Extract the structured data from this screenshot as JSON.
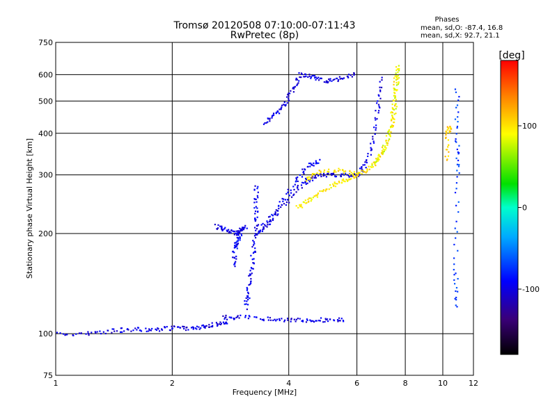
{
  "chart_data": {
    "type": "scatter",
    "title": "Tromsø 20120508 07:10:00-07:11:43",
    "subtitle": "RwPretec (8p)",
    "xlabel": "Frequency [MHz]",
    "ylabel": "Stationary phase Virtual Height [km]",
    "x_scale": "log",
    "y_scale": "log",
    "xlim": [
      1,
      12
    ],
    "ylim": [
      75,
      750
    ],
    "x_ticks": [
      1,
      2,
      4,
      6,
      8,
      10,
      12
    ],
    "y_ticks": [
      75,
      100,
      200,
      300,
      400,
      500,
      600,
      750
    ],
    "grid": true,
    "phases_box": {
      "title": "Phases",
      "line1": "mean, sd,O: -87.4, 16.8",
      "line2": "mean, sd,X:  92.7, 21.1"
    },
    "colorbar": {
      "label": "[deg]",
      "ticks": [
        "100",
        "0",
        "-100"
      ],
      "tick_values": [
        100,
        0,
        -100
      ],
      "range": [
        -180,
        180
      ]
    },
    "traces": [
      {
        "phase": -100,
        "points": [
          [
            1.0,
            100
          ],
          [
            1.2,
            100
          ],
          [
            1.4,
            102
          ],
          [
            1.6,
            103
          ],
          [
            1.8,
            103
          ],
          [
            2.0,
            104
          ],
          [
            2.2,
            104
          ],
          [
            2.4,
            105
          ],
          [
            2.6,
            107
          ],
          [
            2.8,
            109
          ]
        ]
      },
      {
        "phase": -100,
        "points": [
          [
            2.7,
            112
          ],
          [
            3.0,
            112
          ],
          [
            3.5,
            111
          ],
          [
            4.0,
            110
          ],
          [
            4.5,
            110
          ],
          [
            5.0,
            110
          ],
          [
            5.6,
            110
          ]
        ]
      },
      {
        "phase": -95,
        "points": [
          [
            3.1,
            120
          ],
          [
            3.15,
            135
          ],
          [
            3.2,
            155
          ],
          [
            3.25,
            180
          ],
          [
            3.3,
            210
          ],
          [
            3.3,
            240
          ],
          [
            3.3,
            280
          ]
        ]
      },
      {
        "phase": -90,
        "points": [
          [
            2.9,
            160
          ],
          [
            2.9,
            180
          ],
          [
            2.95,
            190
          ],
          [
            3.0,
            200
          ]
        ]
      },
      {
        "phase": -100,
        "points": [
          [
            2.6,
            210
          ],
          [
            2.75,
            205
          ],
          [
            2.9,
            200
          ],
          [
            3.0,
            205
          ],
          [
            3.1,
            210
          ]
        ]
      },
      {
        "phase": -100,
        "points": [
          [
            3.3,
            200
          ],
          [
            3.5,
            210
          ],
          [
            3.7,
            230
          ],
          [
            4.0,
            255
          ],
          [
            4.3,
            280
          ],
          [
            4.6,
            295
          ],
          [
            5.0,
            300
          ],
          [
            5.5,
            300
          ],
          [
            6.0,
            300
          ],
          [
            6.3,
            320
          ],
          [
            6.6,
            380
          ],
          [
            6.8,
            480
          ],
          [
            6.9,
            580
          ]
        ]
      },
      {
        "phase": -95,
        "points": [
          [
            3.4,
            210
          ],
          [
            3.8,
            245
          ],
          [
            4.2,
            290
          ],
          [
            4.5,
            320
          ],
          [
            4.8,
            330
          ]
        ]
      },
      {
        "phase": -100,
        "points": [
          [
            3.45,
            430
          ],
          [
            3.7,
            455
          ],
          [
            3.9,
            490
          ],
          [
            4.1,
            540
          ],
          [
            4.3,
            600
          ],
          [
            4.6,
            590
          ],
          [
            5.0,
            575
          ],
          [
            5.4,
            580
          ],
          [
            5.9,
            600
          ]
        ]
      },
      {
        "phase": 95,
        "points": [
          [
            4.2,
            240
          ],
          [
            4.5,
            250
          ],
          [
            4.8,
            265
          ],
          [
            5.2,
            280
          ],
          [
            5.6,
            290
          ],
          [
            6.0,
            300
          ]
        ]
      },
      {
        "phase": 100,
        "points": [
          [
            4.4,
            290
          ],
          [
            4.8,
            305
          ],
          [
            5.4,
            310
          ],
          [
            6.0,
            300
          ],
          [
            6.4,
            310
          ],
          [
            6.8,
            335
          ],
          [
            7.2,
            380
          ],
          [
            7.4,
            440
          ],
          [
            7.5,
            520
          ],
          [
            7.6,
            620
          ]
        ]
      },
      {
        "phase": 85,
        "points": [
          [
            6.6,
            320
          ],
          [
            7.0,
            350
          ],
          [
            7.3,
            400
          ],
          [
            7.5,
            470
          ],
          [
            7.6,
            560
          ],
          [
            7.65,
            640
          ]
        ]
      },
      {
        "phase": -70,
        "points": [
          [
            10.8,
            120
          ],
          [
            10.8,
            160
          ],
          [
            10.9,
            300
          ],
          [
            10.9,
            380
          ],
          [
            10.9,
            540
          ]
        ]
      },
      {
        "phase": 110,
        "points": [
          [
            10.2,
            330
          ],
          [
            10.3,
            400
          ],
          [
            10.4,
            420
          ]
        ]
      }
    ]
  }
}
